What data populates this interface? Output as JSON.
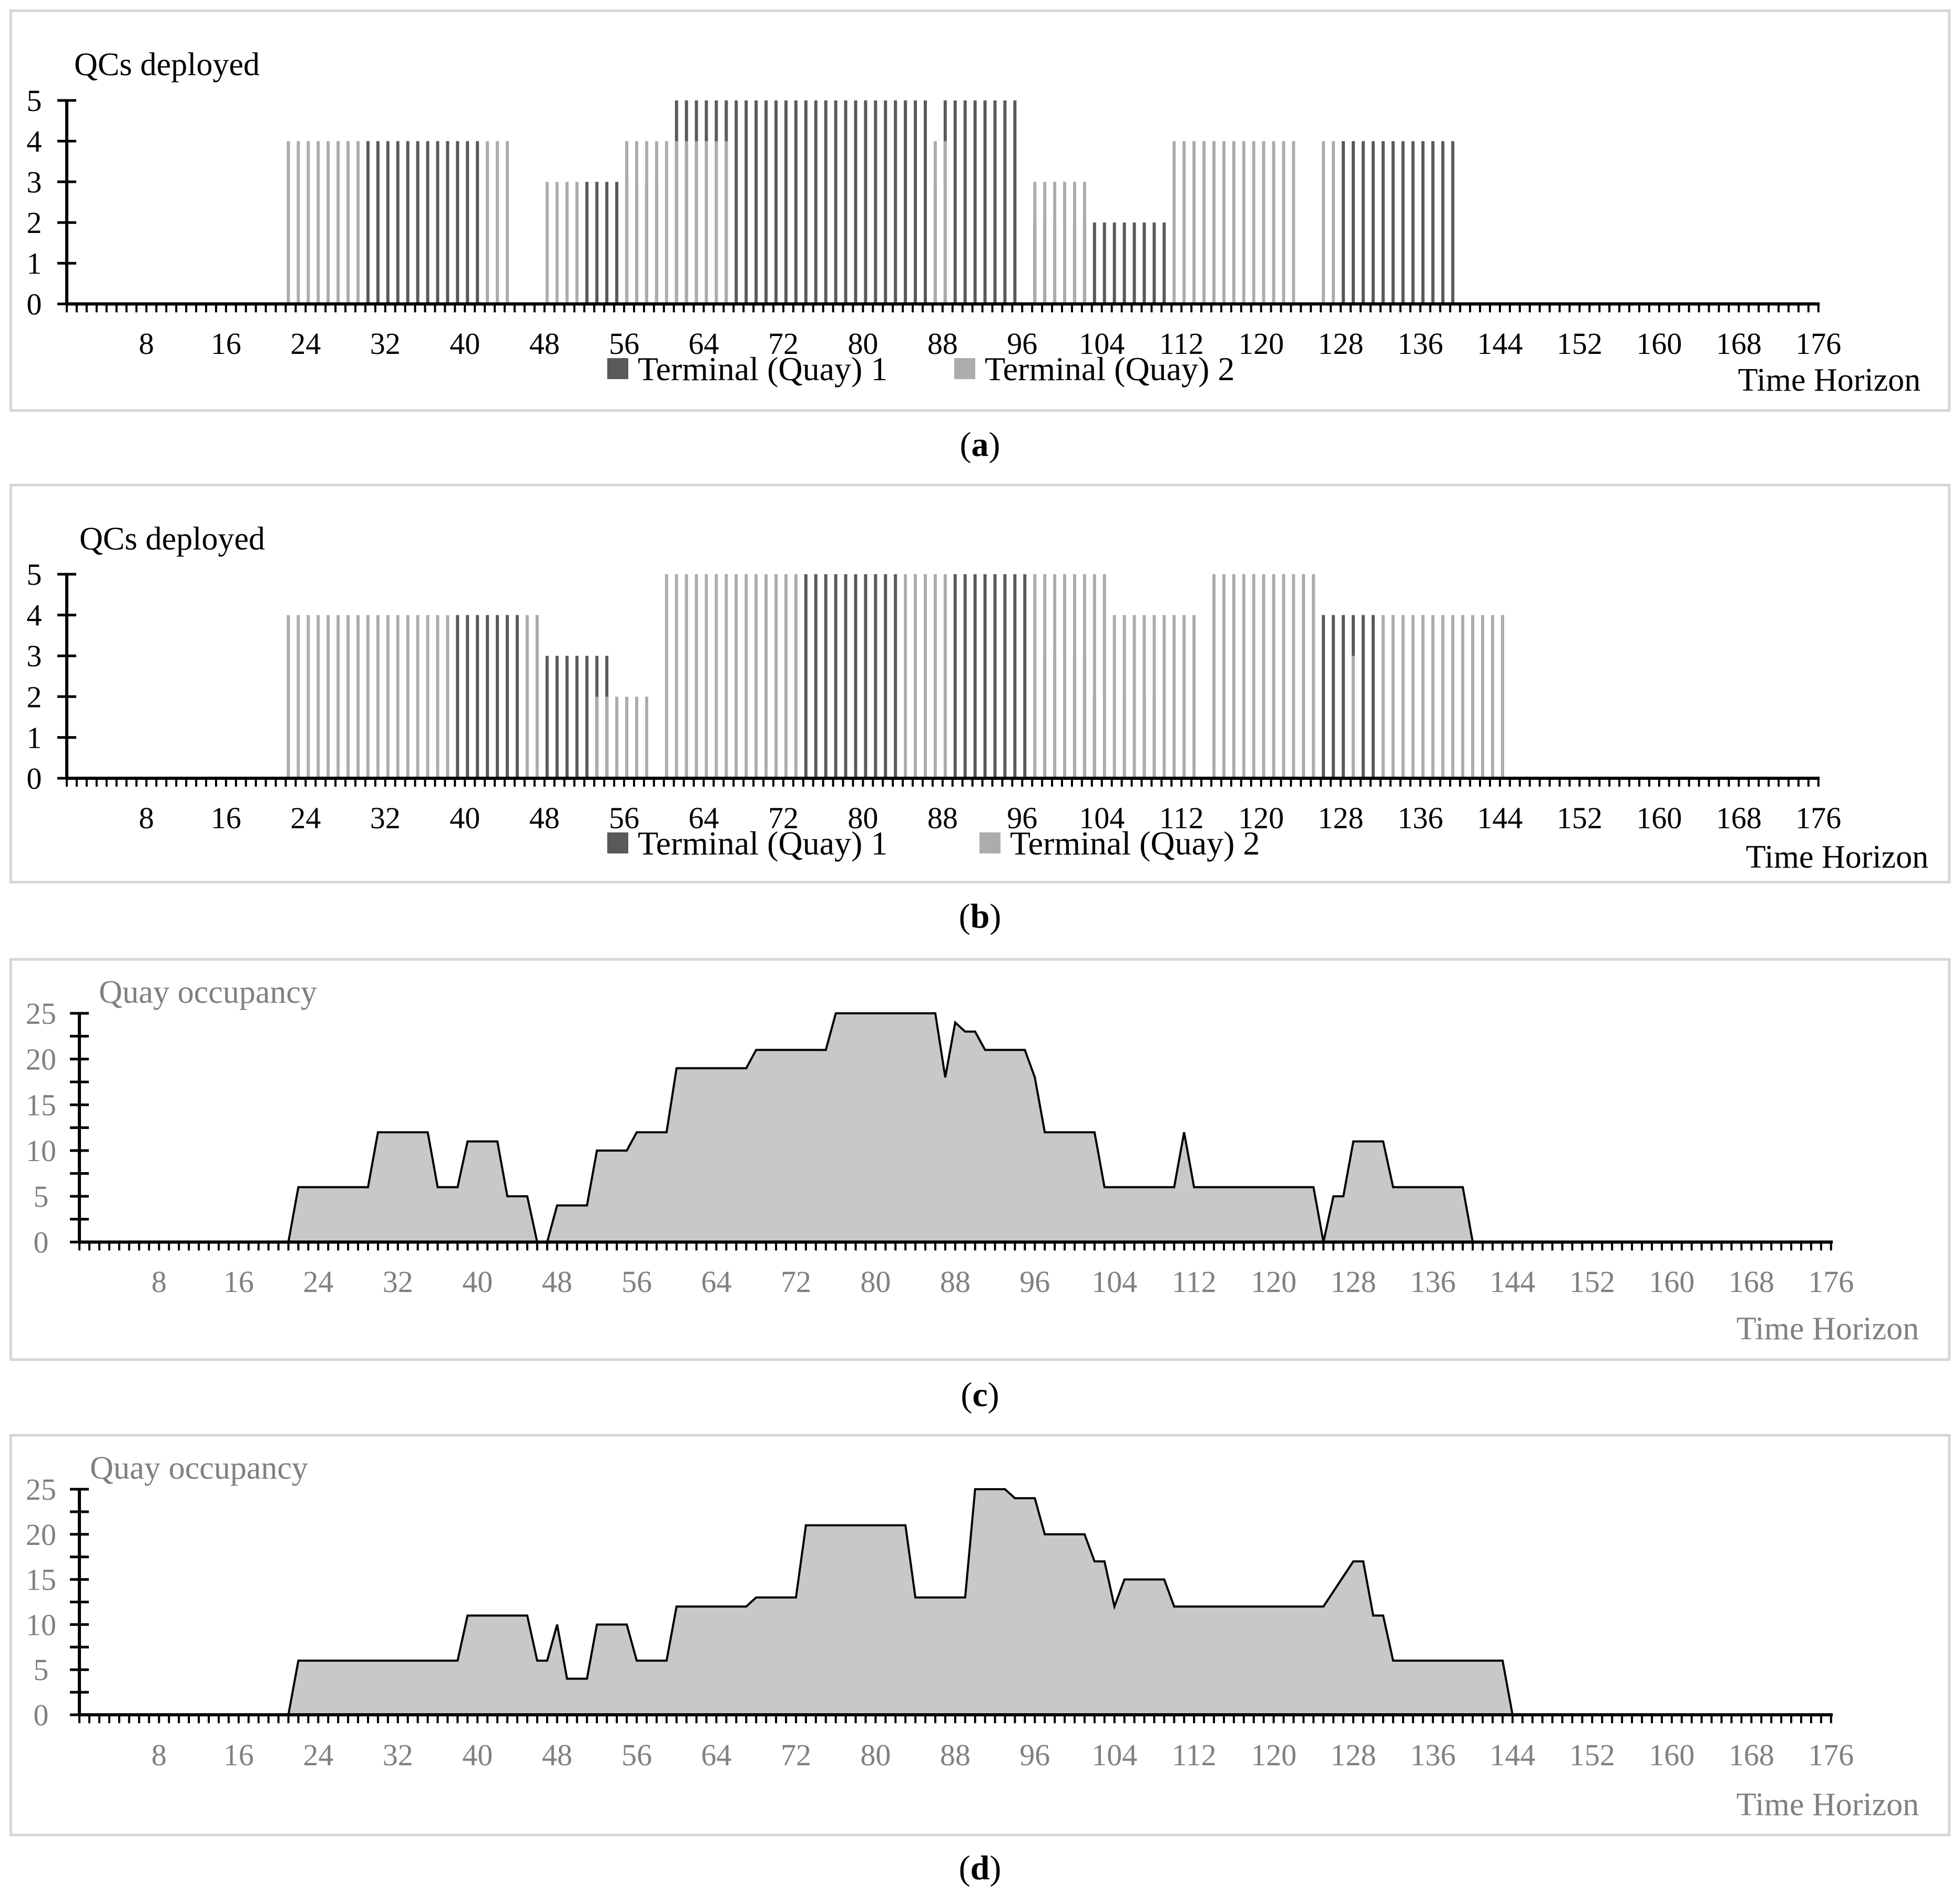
{
  "captions": {
    "a": "a",
    "b": "b",
    "c": "c",
    "d": "d"
  },
  "colors": {
    "quay1": "#595959",
    "quay2": "#acacac",
    "area_fill": "#c8c8c8",
    "axis": "#000000",
    "grey_text": "#808080"
  },
  "chart_data": [
    {
      "id": "a",
      "type": "bar",
      "stacked": false,
      "title": "QCs deployed",
      "xlabel": "Time Horizon",
      "ylabel": "",
      "ylim": [
        0,
        5
      ],
      "yticks": [
        0,
        1,
        2,
        3,
        4,
        5
      ],
      "xlim": [
        0,
        176
      ],
      "xticks": [
        8,
        16,
        24,
        32,
        40,
        48,
        56,
        64,
        72,
        80,
        88,
        96,
        104,
        112,
        120,
        128,
        136,
        144,
        152,
        160,
        168,
        176
      ],
      "legend": [
        "Terminal (Quay) 1",
        "Terminal (Quay) 2"
      ],
      "series": [
        {
          "name": "Terminal (Quay) 1",
          "segments": [
            [
              30,
              42,
              4
            ],
            [
              52,
              60,
              3
            ],
            [
              61,
              87,
              5
            ],
            [
              87,
              88,
              3
            ],
            [
              88,
              96,
              5
            ],
            [
              97,
              111,
              2
            ],
            [
              128,
              140,
              4
            ]
          ]
        },
        {
          "name": "Terminal (Quay) 2",
          "segments": [
            [
              22,
              30,
              4
            ],
            [
              42,
              45,
              4
            ],
            [
              48,
              52,
              3
            ],
            [
              56,
              60,
              4
            ],
            [
              60,
              67,
              4
            ],
            [
              87,
              89,
              4
            ],
            [
              97,
              103,
              3
            ],
            [
              111,
              124,
              4
            ],
            [
              126,
              128,
              4
            ]
          ]
        }
      ]
    },
    {
      "id": "b",
      "type": "bar",
      "stacked": false,
      "title": "QCs deployed",
      "xlabel": "Time Horizon",
      "ylabel": "",
      "ylim": [
        0,
        5
      ],
      "yticks": [
        0,
        1,
        2,
        3,
        4,
        5
      ],
      "xlim": [
        0,
        176
      ],
      "xticks": [
        8,
        16,
        24,
        32,
        40,
        48,
        56,
        64,
        72,
        80,
        88,
        96,
        104,
        112,
        120,
        128,
        136,
        144,
        152,
        160,
        168,
        176
      ],
      "legend": [
        "Terminal (Quay) 1",
        "Terminal (Quay) 2"
      ],
      "series": [
        {
          "name": "Terminal (Quay) 1",
          "segments": [
            [
              39,
              46,
              4
            ],
            [
              48,
              55,
              3
            ],
            [
              74,
              84,
              5
            ],
            [
              89,
              97,
              5
            ],
            [
              98,
              103,
              3
            ],
            [
              103,
              104,
              2
            ],
            [
              106,
              110,
              2
            ],
            [
              126,
              132,
              4
            ]
          ]
        },
        {
          "name": "Terminal (Quay) 2",
          "segments": [
            [
              22,
              39,
              4
            ],
            [
              46,
              48,
              4
            ],
            [
              53,
              59,
              2
            ],
            [
              60,
              74,
              5
            ],
            [
              84,
              89,
              5
            ],
            [
              97,
              105,
              5
            ],
            [
              105,
              114,
              4
            ],
            [
              115,
              126,
              5
            ],
            [
              129,
              130,
              3
            ],
            [
              132,
              145,
              4
            ]
          ]
        }
      ]
    },
    {
      "id": "c",
      "type": "area",
      "title": "Quay occupancy",
      "xlabel": "Time Horizon",
      "ylabel": "",
      "ylim": [
        0,
        25
      ],
      "yticks": [
        0,
        5,
        10,
        15,
        20,
        25
      ],
      "xlim": [
        0,
        176
      ],
      "xticks": [
        8,
        16,
        24,
        32,
        40,
        48,
        56,
        64,
        72,
        80,
        88,
        96,
        104,
        112,
        120,
        128,
        136,
        144,
        152,
        160,
        168,
        176
      ],
      "x": [
        0,
        21,
        22,
        29,
        30,
        35,
        36,
        38,
        39,
        42,
        43,
        45,
        46,
        47,
        48,
        51,
        52,
        55,
        56,
        59,
        60,
        61,
        67,
        68,
        75,
        76,
        86,
        87,
        88,
        89,
        90,
        91,
        95,
        96,
        97,
        102,
        103,
        110,
        111,
        112,
        124,
        125,
        126,
        127,
        128,
        131,
        132,
        139,
        140,
        176
      ],
      "values": [
        0,
        0,
        6,
        6,
        12,
        12,
        6,
        6,
        11,
        11,
        5,
        5,
        0,
        0,
        4,
        4,
        10,
        10,
        12,
        12,
        19,
        19,
        19,
        21,
        21,
        25,
        25,
        18,
        24,
        23,
        23,
        21,
        21,
        18,
        12,
        12,
        6,
        6,
        12,
        6,
        6,
        0,
        5,
        5,
        11,
        11,
        6,
        6,
        0,
        0
      ]
    },
    {
      "id": "d",
      "type": "area",
      "title": "Quay occupancy",
      "xlabel": "Time Horizon",
      "ylabel": "",
      "ylim": [
        0,
        25
      ],
      "yticks": [
        0,
        5,
        10,
        15,
        20,
        25
      ],
      "xlim": [
        0,
        176
      ],
      "xticks": [
        8,
        16,
        24,
        32,
        40,
        48,
        56,
        64,
        72,
        80,
        88,
        96,
        104,
        112,
        120,
        128,
        136,
        144,
        152,
        160,
        168,
        176
      ],
      "x": [
        0,
        21,
        22,
        38,
        39,
        45,
        46,
        47,
        48,
        49,
        51,
        52,
        55,
        56,
        59,
        60,
        67,
        68,
        72,
        73,
        78,
        83,
        84,
        89,
        90,
        93,
        94,
        96,
        97,
        101,
        102,
        103,
        104,
        105,
        109,
        110,
        124,
        125,
        128,
        129,
        130,
        131,
        132,
        143,
        144,
        176
      ],
      "values": [
        0,
        0,
        6,
        6,
        11,
        11,
        6,
        6,
        10,
        4,
        4,
        10,
        10,
        6,
        6,
        12,
        12,
        13,
        13,
        21,
        21,
        21,
        13,
        13,
        25,
        25,
        24,
        24,
        20,
        20,
        17,
        17,
        12,
        15,
        15,
        12,
        12,
        12,
        17,
        17,
        11,
        11,
        6,
        6,
        0,
        0
      ]
    }
  ]
}
